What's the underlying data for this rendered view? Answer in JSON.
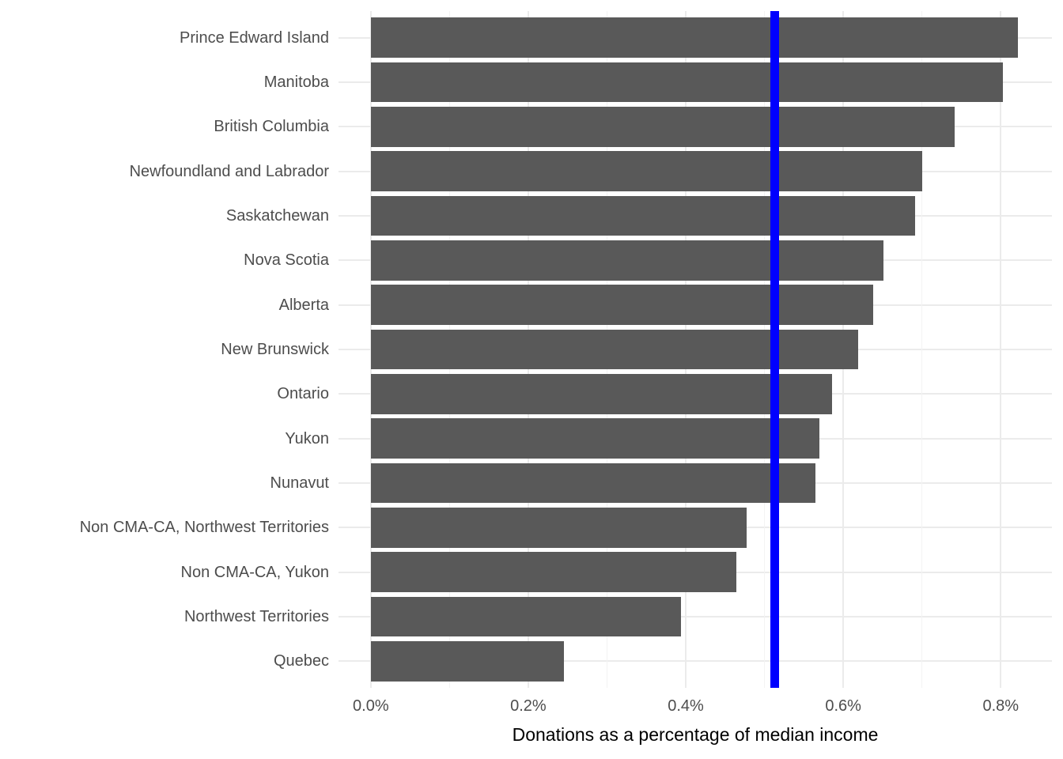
{
  "chart_data": {
    "type": "bar",
    "orientation": "horizontal",
    "title": "",
    "xlabel": "Donations as a percentage of median income",
    "ylabel": "",
    "unit": "%",
    "categories": [
      "Prince Edward Island",
      "Manitoba",
      "British Columbia",
      "Newfoundland and Labrador",
      "Saskatchewan",
      "Nova Scotia",
      "Alberta",
      "New Brunswick",
      "Ontario",
      "Yukon",
      "Nunavut",
      "Non CMA-CA, Northwest Territories",
      "Non CMA-CA, Yukon",
      "Northwest Territories",
      "Quebec"
    ],
    "values": [
      0.822,
      0.803,
      0.741,
      0.7,
      0.691,
      0.651,
      0.638,
      0.619,
      0.586,
      0.57,
      0.565,
      0.477,
      0.464,
      0.394,
      0.245
    ],
    "reference_line": {
      "axis": "x",
      "value": 0.513,
      "color": "#0000FF"
    },
    "x_ticks": {
      "values": [
        0,
        0.2,
        0.4,
        0.6,
        0.8
      ],
      "labels": [
        "0.0%",
        "0.2%",
        "0.4%",
        "0.6%",
        "0.8%"
      ]
    },
    "x_minor_ticks": [
      0.1,
      0.3,
      0.5,
      0.7
    ],
    "xlim": [
      -0.041,
      0.865
    ],
    "grid": "vertical major+minor, horizontal at category centers, no axis lines",
    "legend": "none",
    "colors": {
      "bar": "#595959",
      "grid_major": "#EBEBEB",
      "grid_minor": "#F3F3F3",
      "axis_text": "#4D4D4D",
      "axis_title": "#000000",
      "reference_line": "#0000FF",
      "background": "#FFFFFF"
    }
  }
}
